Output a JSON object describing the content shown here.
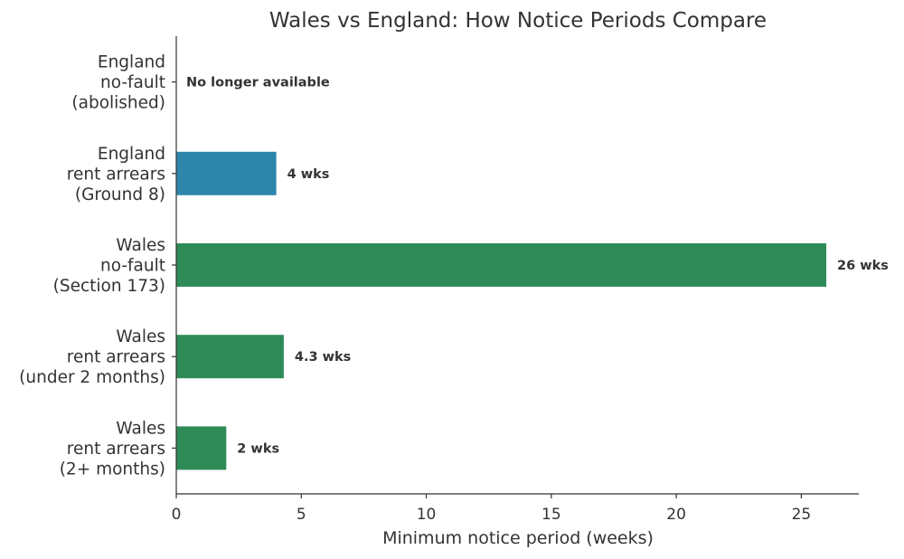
{
  "chart_data": {
    "type": "bar",
    "orientation": "horizontal",
    "title": "Wales vs England: How Notice Periods Compare",
    "xlabel": "Minimum notice period (weeks)",
    "ylabel": "",
    "xlim": [
      0,
      27.3
    ],
    "xticks": [
      0,
      5,
      10,
      15,
      20,
      25
    ],
    "grid": false,
    "categories": [
      [
        "England",
        "no-fault",
        "(abolished)"
      ],
      [
        "England",
        "rent arrears",
        "(Ground 8)"
      ],
      [
        "Wales",
        "no-fault",
        "(Section 173)"
      ],
      [
        "Wales",
        "rent arrears",
        "(under 2 months)"
      ],
      [
        "Wales",
        "rent arrears",
        "(2+ months)"
      ]
    ],
    "values": [
      0,
      4,
      26,
      4.3,
      2
    ],
    "data_labels": [
      "No longer available",
      "4 wks",
      "26 wks",
      "4.3 wks",
      "2 wks"
    ],
    "colors": [
      "#2e86ab",
      "#2e86ab",
      "#2e8b57",
      "#2e8b57",
      "#2e8b57"
    ]
  }
}
